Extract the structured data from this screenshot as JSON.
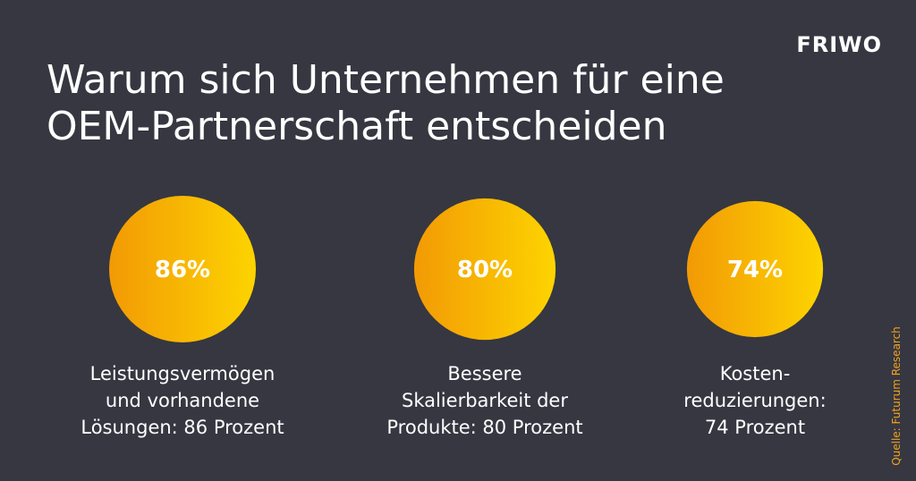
{
  "header": {
    "logo": "FRIWO",
    "title_line1": "Warum sich Unternehmen für eine",
    "title_line2": "OEM-Partnerschaft entscheiden"
  },
  "source": "Quelle: Futurum Research",
  "colors": {
    "background": "#363741",
    "gradient_start": "#f29a05",
    "gradient_end": "#fdd400",
    "source_text": "#f2a31d"
  },
  "chart_data": {
    "type": "bubble",
    "title": "Warum sich Unternehmen für eine OEM-Partnerschaft entscheiden",
    "unit": "%",
    "items": [
      {
        "value": 86,
        "value_label": "86%",
        "caption": [
          "Leistungsvermögen",
          "und vorhandene",
          "Lösungen: 86 Prozent"
        ]
      },
      {
        "value": 80,
        "value_label": "80%",
        "caption": [
          "Bessere",
          "Skalierbarkeit der",
          "Produkte: 80 Prozent"
        ]
      },
      {
        "value": 74,
        "value_label": "74%",
        "caption": [
          "Kosten-",
          "reduzierungen:",
          "74 Prozent"
        ]
      }
    ]
  }
}
